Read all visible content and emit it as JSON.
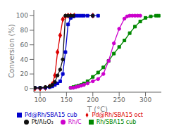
{
  "chart_data": {
    "type": "line",
    "xlabel": "T (°C)",
    "ylabel": "Conversion (%)",
    "xlim": [
      88,
      330
    ],
    "ylim": [
      -5,
      108
    ],
    "xticks": [
      100,
      150,
      200,
      250,
      300
    ],
    "yticks": [
      0,
      20,
      40,
      60,
      80,
      100
    ],
    "legend": "bottom",
    "series": [
      {
        "name": "Pd@Rh/SBA15 oct",
        "color": "#dd0000",
        "marker": "diamond",
        "x": [
          90,
          100,
          110,
          118,
          123,
          128,
          133,
          138,
          143,
          148,
          153,
          158,
          165,
          200
        ],
        "values": [
          0,
          0,
          1,
          3,
          6,
          18,
          50,
          73,
          95,
          99,
          100,
          100,
          100,
          100
        ]
      },
      {
        "name": "Pd@Rh/SBA15 cub",
        "color": "#0000cc",
        "marker": "square",
        "x": [
          90,
          100,
          110,
          118,
          123,
          128,
          133,
          138,
          143,
          148,
          153,
          158,
          163,
          168,
          173,
          178,
          183,
          190,
          200,
          210
        ],
        "values": [
          1,
          1,
          1,
          2,
          3,
          5,
          7,
          10,
          20,
          50,
          88,
          97,
          99,
          100,
          100,
          100,
          100,
          100,
          100,
          100
        ]
      },
      {
        "name": "Rh/SBA15 cub",
        "color": "#008800",
        "marker": "square",
        "x": [
          158,
          163,
          168,
          173,
          178,
          183,
          190,
          200,
          210,
          220,
          230,
          240,
          250,
          260,
          270,
          280,
          290,
          300,
          310,
          320,
          325
        ],
        "values": [
          1,
          2,
          3,
          4,
          5,
          7,
          10,
          16,
          22,
          29,
          38,
          48,
          57,
          66,
          76,
          85,
          92,
          97,
          99,
          100,
          100
        ]
      },
      {
        "name": "Rh/C",
        "color": "#cc00cc",
        "marker": "circle",
        "x": [
          158,
          163,
          168,
          173,
          178,
          183,
          190,
          200,
          210,
          220,
          230,
          240,
          250,
          260,
          265,
          270,
          275,
          280,
          285,
          290
        ],
        "values": [
          1,
          1,
          2,
          3,
          4,
          5,
          7,
          10,
          13,
          20,
          38,
          62,
          82,
          96,
          99,
          100,
          100,
          100,
          100,
          100
        ]
      },
      {
        "name": "Pt/Al₂O₃",
        "color": "#111111",
        "marker": "circle",
        "x": [
          90,
          100,
          110,
          118,
          123,
          128,
          133,
          138,
          143,
          148,
          153,
          158,
          163,
          200
        ],
        "values": [
          1,
          1,
          2,
          3,
          5,
          9,
          18,
          26,
          40,
          100,
          100,
          100,
          100,
          100
        ]
      }
    ]
  }
}
